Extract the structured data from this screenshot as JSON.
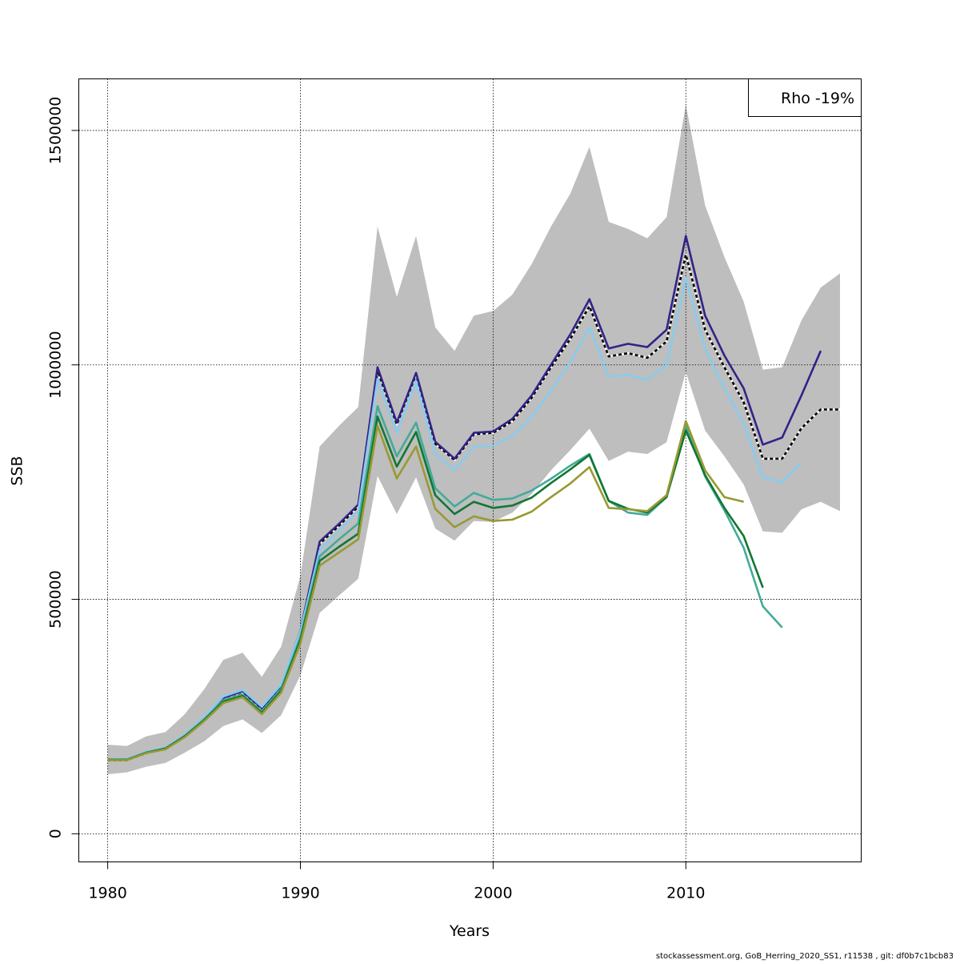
{
  "chart_data": {
    "type": "line",
    "title": "",
    "xlabel": "Years",
    "ylabel": "SSB",
    "xlim": [
      1978.5,
      2019.1
    ],
    "ylim": [
      -60000,
      1610000
    ],
    "grid": true,
    "x_ticks": [
      1980,
      1990,
      2000,
      2010
    ],
    "x_tick_labels": [
      "1980",
      "1990",
      "2000",
      "2010"
    ],
    "y_ticks": [
      0,
      500000,
      1000000,
      1500000
    ],
    "y_tick_labels": [
      "0",
      "500000",
      "1000000",
      "1500000"
    ],
    "legend": {
      "placement": "top-right",
      "text": "Rho -19%"
    },
    "footer": "stockassessment.org, GoB_Herring_2020_SS1, r11538 , git: df0b7c1bcb83",
    "confidence_band": {
      "color": "#bebebe",
      "x": [
        1980,
        1981,
        1982,
        1983,
        1984,
        1985,
        1986,
        1987,
        1988,
        1989,
        1990,
        1991,
        1992,
        1993,
        1994,
        1995,
        1996,
        1997,
        1998,
        1999,
        2000,
        2001,
        2002,
        2003,
        2004,
        2005,
        2006,
        2007,
        2008,
        2009,
        2010,
        2011,
        2012,
        2013,
        2014,
        2015,
        2016,
        2017,
        2018
      ],
      "upper": [
        190000,
        187000,
        208000,
        217000,
        255000,
        308000,
        371000,
        386000,
        335000,
        399000,
        550000,
        826000,
        870000,
        910000,
        1295000,
        1145000,
        1275000,
        1080000,
        1030000,
        1105000,
        1115000,
        1150000,
        1215000,
        1295000,
        1365000,
        1465000,
        1305000,
        1290000,
        1270000,
        1315000,
        1555000,
        1340000,
        1230000,
        1135000,
        990000,
        995000,
        1095000,
        1165000,
        1195000
      ],
      "lower": [
        127000,
        131000,
        143000,
        151000,
        173000,
        197000,
        230000,
        244000,
        215000,
        253000,
        338000,
        471000,
        508000,
        544000,
        763000,
        682000,
        760000,
        651000,
        625000,
        667000,
        665000,
        685000,
        725000,
        775000,
        818000,
        864000,
        795000,
        815000,
        810000,
        835000,
        985000,
        860000,
        805000,
        745000,
        645000,
        642000,
        692000,
        708000,
        688000
      ]
    },
    "series": [
      {
        "color": "#000000",
        "dashed": true,
        "x": [
          1980,
          1981,
          1982,
          1983,
          1984,
          1985,
          1986,
          1987,
          1988,
          1989,
          1990,
          1991,
          1992,
          1993,
          1994,
          1995,
          1996,
          1997,
          1998,
          1999,
          2000,
          2001,
          2002,
          2003,
          2004,
          2005,
          2006,
          2007,
          2008,
          2009,
          2010,
          2011,
          2012,
          2013,
          2014,
          2015,
          2016,
          2017,
          2018
        ],
        "values": [
          157000,
          157000,
          172000,
          181000,
          208000,
          243000,
          285000,
          298000,
          262000,
          310000,
          425000,
          619000,
          657000,
          698000,
          988000,
          873000,
          980000,
          832000,
          797000,
          852000,
          855000,
          880000,
          930000,
          995000,
          1055000,
          1125000,
          1018000,
          1025000,
          1015000,
          1050000,
          1235000,
          1075000,
          995000,
          920000,
          800000,
          800000,
          865000,
          905000,
          905000
        ]
      },
      {
        "color": "#332288",
        "x": [
          1980,
          1981,
          1982,
          1983,
          1984,
          1985,
          1986,
          1987,
          1988,
          1989,
          1990,
          1991,
          1992,
          1993,
          1994,
          1995,
          1996,
          1997,
          1998,
          1999,
          2000,
          2001,
          2002,
          2003,
          2004,
          2005,
          2006,
          2007,
          2008,
          2009,
          2010,
          2011,
          2012,
          2013,
          2014,
          2015,
          2016,
          2017
        ],
        "values": [
          158000,
          158000,
          173000,
          183000,
          210000,
          247000,
          290000,
          304000,
          268000,
          316000,
          433000,
          623000,
          661000,
          702000,
          995000,
          877000,
          983000,
          836000,
          800000,
          855000,
          858000,
          885000,
          935000,
          1000000,
          1065000,
          1140000,
          1035000,
          1045000,
          1038000,
          1075000,
          1275000,
          1105000,
          1020000,
          950000,
          830000,
          845000,
          935000,
          1030000
        ]
      },
      {
        "color": "#88CCEE",
        "x": [
          1980,
          1981,
          1982,
          1983,
          1984,
          1985,
          1986,
          1987,
          1988,
          1989,
          1990,
          1991,
          1992,
          1993,
          1994,
          1995,
          1996,
          1997,
          1998,
          1999,
          2000,
          2001,
          2002,
          2003,
          2004,
          2005,
          2006,
          2007,
          2008,
          2009,
          2010,
          2011,
          2012,
          2013,
          2014,
          2015,
          2016
        ],
        "values": [
          159000,
          160000,
          175000,
          184000,
          212000,
          248000,
          293000,
          307000,
          271000,
          318000,
          432000,
          605000,
          646000,
          688000,
          970000,
          855000,
          965000,
          810000,
          775000,
          825000,
          828000,
          848000,
          890000,
          945000,
          1005000,
          1080000,
          975000,
          978000,
          968000,
          1000000,
          1185000,
          1035000,
          950000,
          875000,
          760000,
          750000,
          790000
        ]
      },
      {
        "color": "#44AA99",
        "x": [
          1980,
          1981,
          1982,
          1983,
          1984,
          1985,
          1986,
          1987,
          1988,
          1989,
          1990,
          1991,
          1992,
          1993,
          1994,
          1995,
          1996,
          1997,
          1998,
          1999,
          2000,
          2001,
          2002,
          2003,
          2004,
          2005,
          2006,
          2007,
          2008,
          2009,
          2010,
          2011,
          2012,
          2013,
          2014,
          2015
        ],
        "values": [
          158000,
          158000,
          173000,
          182000,
          209000,
          244000,
          285000,
          297000,
          261000,
          309000,
          420000,
          592000,
          628000,
          662000,
          912000,
          805000,
          877000,
          737000,
          698000,
          727000,
          712000,
          715000,
          732000,
          757000,
          785000,
          810000,
          710000,
          685000,
          680000,
          718000,
          870000,
          762000,
          690000,
          610000,
          485000,
          440000
        ]
      },
      {
        "color": "#117733",
        "x": [
          1980,
          1981,
          1982,
          1983,
          1984,
          1985,
          1986,
          1987,
          1988,
          1989,
          1990,
          1991,
          1992,
          1993,
          1994,
          1995,
          1996,
          1997,
          1998,
          1999,
          2000,
          2001,
          2002,
          2003,
          2004,
          2005,
          2006,
          2007,
          2008,
          2009,
          2010,
          2011,
          2012,
          2013,
          2014
        ],
        "values": [
          158000,
          158000,
          173000,
          182000,
          208000,
          242000,
          282000,
          294000,
          258000,
          305000,
          414000,
          582000,
          612000,
          640000,
          890000,
          783000,
          857000,
          722000,
          682000,
          708000,
          695000,
          700000,
          717000,
          748000,
          777000,
          808000,
          710000,
          693000,
          685000,
          718000,
          860000,
          765000,
          695000,
          635000,
          525000
        ]
      },
      {
        "color": "#999933",
        "x": [
          1980,
          1981,
          1982,
          1983,
          1984,
          1985,
          1986,
          1987,
          1988,
          1989,
          1990,
          1991,
          1992,
          1993,
          1994,
          1995,
          1996,
          1997,
          1998,
          1999,
          2000,
          2001,
          2002,
          2003,
          2004,
          2005,
          2006,
          2007,
          2008,
          2009,
          2010,
          2011,
          2012,
          2013
        ],
        "values": [
          157000,
          157000,
          172000,
          180000,
          206000,
          240000,
          279000,
          291000,
          255000,
          301000,
          406000,
          572000,
          600000,
          628000,
          870000,
          758000,
          826000,
          693000,
          654000,
          677000,
          667000,
          670000,
          687000,
          718000,
          747000,
          782000,
          695000,
          692000,
          688000,
          722000,
          880000,
          775000,
          718000,
          708000
        ]
      }
    ]
  }
}
